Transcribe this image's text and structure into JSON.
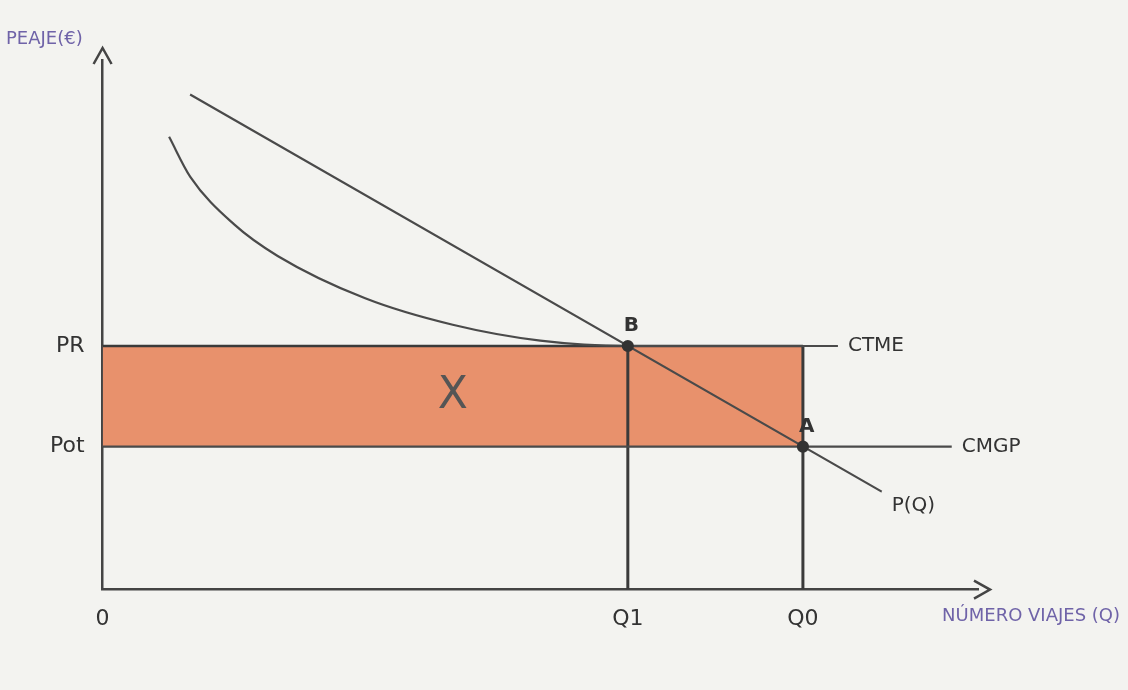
{
  "chart_data": {
    "type": "line",
    "x_label": "NÚMERO VIAJES (Q)",
    "y_label": "PEAJE(€)",
    "xlim": [
      0,
      10
    ],
    "ylim": [
      0,
      10
    ],
    "xticks": [
      0,
      {
        "value": 6,
        "label": "Q1"
      },
      {
        "value": 8,
        "label": "Q0"
      }
    ],
    "yticks": [
      {
        "value": 2.7,
        "label": "Pot"
      },
      {
        "value": 4.6,
        "label": "PR"
      }
    ],
    "grid": false,
    "series": [
      {
        "name": "P(Q)",
        "color": "#4a4a4a",
        "line_style": "solid",
        "x": [
          1,
          8.9
        ],
        "values": [
          9.35,
          1.85
        ]
      },
      {
        "name": "CTME",
        "color": "#4a4a4a",
        "line_style": "solid",
        "x": [
          0.76,
          1,
          1.5,
          2,
          3,
          4,
          5,
          6,
          8.4
        ],
        "values": [
          8.55,
          7.8,
          6.9,
          6.3,
          5.5,
          5.0,
          4.7,
          4.6,
          4.6
        ]
      },
      {
        "name": "CMGP",
        "color": "#4a4a4a",
        "line_style": "solid",
        "x": [
          0,
          9.7
        ],
        "values": [
          2.7,
          2.7
        ]
      },
      {
        "type": "scatter",
        "marker": "circle",
        "color": "#333333",
        "x": [
          6,
          8
        ],
        "values": [
          4.6,
          2.7
        ]
      }
    ],
    "shaded_area": {
      "color": "#e8916c",
      "x": [
        0,
        8
      ],
      "lower": 2.7,
      "upper": 4.6
    },
    "lines": [
      {
        "color": "#3a3a3a",
        "x": [
          6,
          6
        ],
        "values": [
          0,
          4.6
        ]
      },
      {
        "color": "#3a3a3a",
        "x": [
          8,
          8
        ],
        "values": [
          0,
          4.6
        ]
      }
    ],
    "annotations": [
      {
        "text": "X",
        "x": 4,
        "y": 3.65
      },
      {
        "text": "B",
        "x": 6,
        "y": 4.6
      },
      {
        "text": "A",
        "x": 8,
        "y": 2.7
      }
    ]
  }
}
